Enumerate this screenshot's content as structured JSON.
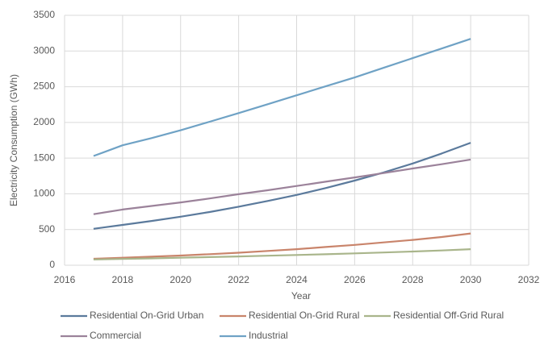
{
  "chart_data": {
    "type": "line",
    "xlabel": "Year",
    "ylabel": "Electricity Consumption (GWh)",
    "x": [
      2017,
      2018,
      2019,
      2020,
      2021,
      2022,
      2023,
      2024,
      2025,
      2026,
      2027,
      2028,
      2029,
      2030
    ],
    "series": [
      {
        "name": "Residential On-Grid Urban",
        "color": "#5b7a9c",
        "values": [
          510,
          565,
          620,
          680,
          745,
          820,
          900,
          985,
          1080,
          1185,
          1300,
          1425,
          1565,
          1715
        ]
      },
      {
        "name": "Residential On-Grid Rural",
        "color": "#c9846b",
        "values": [
          90,
          105,
          120,
          135,
          155,
          175,
          200,
          225,
          255,
          285,
          320,
          355,
          395,
          445
        ]
      },
      {
        "name": "Residential Off-Grid Rural",
        "color": "#a9b58b",
        "values": [
          80,
          88,
          96,
          105,
          114,
          123,
          133,
          143,
          154,
          166,
          178,
          192,
          207,
          225
        ]
      },
      {
        "name": "Commercial",
        "color": "#9b829a",
        "values": [
          715,
          780,
          830,
          880,
          935,
          995,
          1050,
          1110,
          1170,
          1230,
          1290,
          1355,
          1415,
          1480
        ]
      },
      {
        "name": "Industrial",
        "color": "#6fa2c5",
        "values": [
          1530,
          1680,
          1780,
          1890,
          2010,
          2130,
          2255,
          2380,
          2505,
          2630,
          2765,
          2900,
          3035,
          3170
        ]
      }
    ],
    "xlim": [
      2016,
      2032
    ],
    "xticks": [
      2016,
      2018,
      2020,
      2022,
      2024,
      2026,
      2028,
      2030,
      2032
    ],
    "ylim": [
      0,
      3500
    ],
    "yticks": [
      0,
      500,
      1000,
      1500,
      2000,
      2500,
      3000,
      3500
    ],
    "grid": true,
    "legend": "bottom"
  }
}
